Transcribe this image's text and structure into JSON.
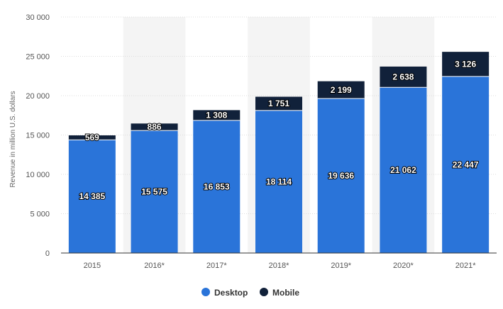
{
  "chart_data": {
    "type": "bar",
    "stacked": true,
    "categories": [
      "2015",
      "2016*",
      "2017*",
      "2018*",
      "2019*",
      "2020*",
      "2021*"
    ],
    "series": [
      {
        "name": "Desktop",
        "color": "#2a74d9",
        "values": [
          14385,
          15575,
          16853,
          18114,
          19636,
          21062,
          22447
        ],
        "labels": [
          "14 385",
          "15 575",
          "16 853",
          "18 114",
          "19 636",
          "21 062",
          "22 447"
        ]
      },
      {
        "name": "Mobile",
        "color": "#11213a",
        "values": [
          569,
          886,
          1308,
          1751,
          2199,
          2638,
          3126
        ],
        "labels": [
          "569",
          "886",
          "1 308",
          "1 751",
          "2 199",
          "2 638",
          "3 126"
        ]
      }
    ],
    "ylabel": "Revenue in million U.S. dollars",
    "xlabel": "",
    "ylim": [
      0,
      30000
    ],
    "yticks": [
      0,
      5000,
      10000,
      15000,
      20000,
      25000,
      30000
    ],
    "ytick_labels": [
      "0",
      "5 000",
      "10 000",
      "15 000",
      "20 000",
      "25 000",
      "30 000"
    ],
    "grid": "horizontal dashed",
    "legend_position": "bottom-center",
    "shaded_categories": [
      1,
      3,
      5
    ],
    "shade_color": "#f4f4f4"
  }
}
